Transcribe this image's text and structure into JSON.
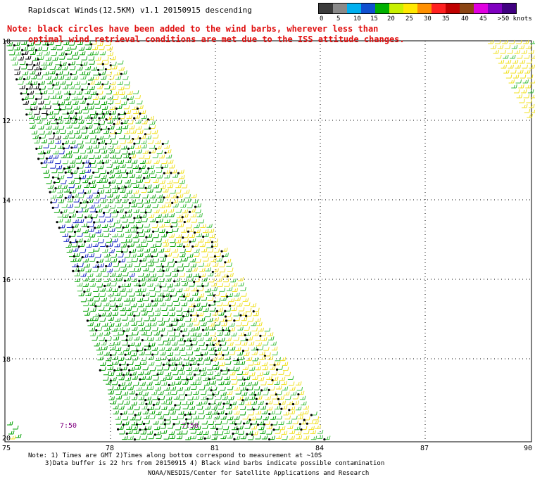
{
  "header": {
    "title": "Rapidscat Winds(12.5KM) v1.1 20150915 descending",
    "note_line1": "Note: black circles have been added to the wind barbs, wherever less than",
    "note_line2": "optimal wind retrieval conditions are met due to the ISS attitude changes."
  },
  "scale": {
    "colors": [
      "#3c3c3c",
      "#8a8a8a",
      "#00b0f0",
      "#1050d0",
      "#00b000",
      "#c8f000",
      "#ffe800",
      "#ff9000",
      "#ff2020",
      "#c00000",
      "#8b4513",
      "#e000e0",
      "#8000c0",
      "#400080"
    ],
    "labels": [
      "0",
      "5",
      "10",
      "15",
      "20",
      "25",
      "30",
      "35",
      "40",
      "45",
      ">50 knots"
    ]
  },
  "map": {
    "lat_labels": [
      "10",
      "12",
      "14",
      "16",
      "18",
      "20"
    ],
    "lon_labels": [
      "75",
      "78",
      "81",
      "84",
      "87",
      "90"
    ],
    "times": [
      "7:50",
      "7:50"
    ]
  },
  "footer": {
    "note1": "Note: 1) Times are GMT 2)Times along bottom correspond to measurement at ~10S",
    "note2": "3)Data buffer is 22 hrs from 20150915 4) Black wind barbs indicate possible contamination",
    "credit": "NOAA/NESDIS/Center for Satellite Applications and Research"
  },
  "colors": {
    "green": "#00a000",
    "light_green": "#40c040",
    "yellow": "#f0e020",
    "blue": "#1020c0",
    "black": "#000000",
    "note_red": "#e01010"
  }
}
